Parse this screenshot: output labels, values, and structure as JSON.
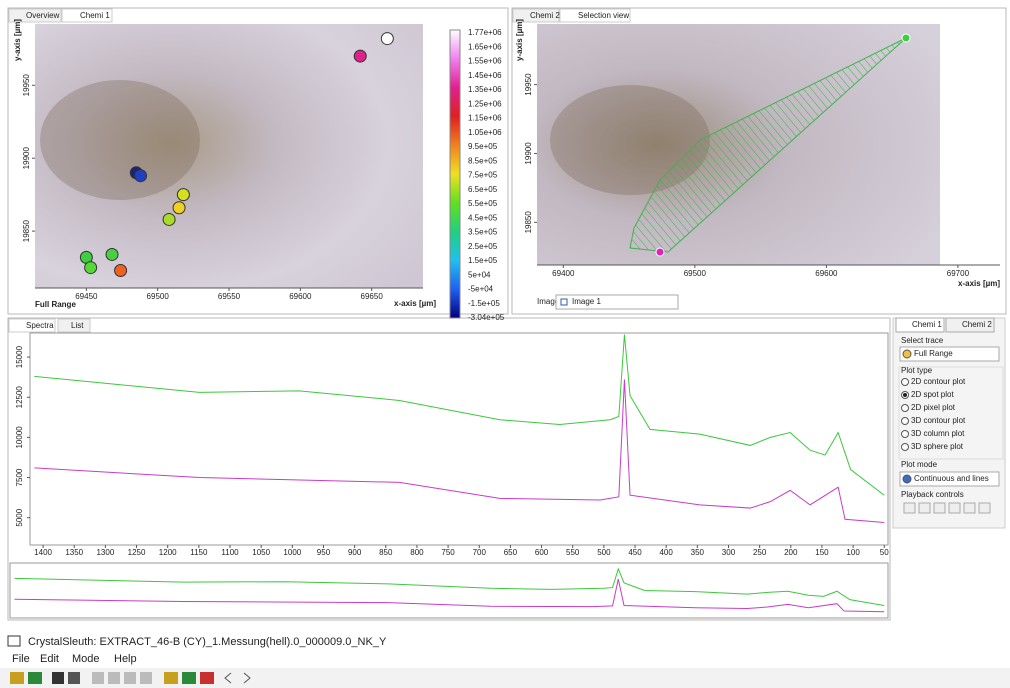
{
  "overview_panel": {
    "tabs": [
      "Overview",
      "Chemi 1"
    ],
    "y_axis_label": "y-axis [µm]",
    "x_axis_label": "x-axis [µm]",
    "range_label": "Full Range",
    "xlim": [
      69414,
      69686
    ],
    "ylim": [
      19811,
      19992
    ],
    "xticks": [
      69450,
      69500,
      69550,
      69600,
      69650
    ],
    "yticks": [
      19850,
      19900,
      19950
    ],
    "spots": [
      {
        "x": 69661,
        "y": 19982,
        "color": "#ffffff"
      },
      {
        "x": 69642,
        "y": 19970,
        "color": "#e0208c"
      },
      {
        "x": 69485,
        "y": 19890,
        "color": "#1a237e"
      },
      {
        "x": 69488,
        "y": 19888,
        "color": "#1e40c0"
      },
      {
        "x": 69518,
        "y": 19875,
        "color": "#d4e020"
      },
      {
        "x": 69515,
        "y": 19866,
        "color": "#f0d020"
      },
      {
        "x": 69508,
        "y": 19858,
        "color": "#a8dc28"
      },
      {
        "x": 69450,
        "y": 19832,
        "color": "#3cd040"
      },
      {
        "x": 69453,
        "y": 19825,
        "color": "#58d838"
      },
      {
        "x": 69468,
        "y": 19834,
        "color": "#48d040"
      },
      {
        "x": 69474,
        "y": 19823,
        "color": "#f06020"
      }
    ],
    "colorbar": {
      "labels": [
        "1.77e+06",
        "1.65e+06",
        "1.55e+06",
        "1.45e+06",
        "1.35e+06",
        "1.25e+06",
        "1.15e+06",
        "1.05e+06",
        "9.5e+05",
        "8.5e+05",
        "7.5e+05",
        "6.5e+05",
        "5.5e+05",
        "4.5e+05",
        "3.5e+05",
        "2.5e+05",
        "1.5e+05",
        "5e+04",
        "-5e+04",
        "-1.5e+05",
        "-3.04e+05"
      ],
      "colors": [
        "#ffffff",
        "#f080f0",
        "#e02090",
        "#e02020",
        "#f08020",
        "#f0e020",
        "#60e020",
        "#20d080",
        "#20c0f0",
        "#2060f0",
        "#000080"
      ]
    }
  },
  "selection_panel": {
    "tabs": [
      "Chemi 2",
      "Selection view"
    ],
    "y_axis_label": "y-axis [µm]",
    "x_axis_label": "x-axis [µm]",
    "xlim": [
      69380,
      69732
    ],
    "ylim": [
      19819,
      19994
    ],
    "xticks": [
      69400,
      69500,
      69600,
      69700
    ],
    "yticks": [
      19850,
      19900,
      19950
    ],
    "image_label": "Image:",
    "image_value": "Image 1"
  },
  "spectra_panel": {
    "tabs": [
      "Spectra",
      "List"
    ],
    "xlim": [
      1421,
      44
    ],
    "ylim": [
      3300,
      16500
    ],
    "overview_ylim": [
      3000,
      18000
    ],
    "xticks": [
      1400,
      1350,
      1300,
      1250,
      1200,
      1150,
      1100,
      1050,
      1000,
      950,
      900,
      850,
      800,
      750,
      700,
      650,
      600,
      550,
      500,
      450,
      400,
      350,
      300,
      250,
      200,
      150,
      100,
      50
    ],
    "yticks": [
      5000,
      7500,
      10000,
      12500,
      15000
    ],
    "series": [
      {
        "color": "#3cc83c",
        "x": [
          1414,
          1149,
          989,
          828,
          667,
          571,
          490,
          476,
          467,
          458,
          426,
          346,
          265,
          233,
          201,
          169,
          145,
          124,
          104,
          50
        ],
        "values": [
          13800,
          12800,
          12900,
          12300,
          11100,
          10800,
          11100,
          11300,
          16400,
          12600,
          10500,
          10200,
          9500,
          10000,
          10300,
          9200,
          8900,
          10300,
          8000,
          6400
        ]
      },
      {
        "color": "#c83cc8",
        "x": [
          1414,
          1149,
          828,
          667,
          506,
          476,
          467,
          458,
          346,
          265,
          233,
          201,
          169,
          124,
          113,
          50
        ],
        "values": [
          8100,
          7500,
          7200,
          6200,
          6100,
          6300,
          13600,
          6400,
          5800,
          5600,
          6000,
          6700,
          5800,
          6900,
          4900,
          4700
        ]
      }
    ]
  },
  "control_panel": {
    "tabs": [
      "Chemi 1",
      "Chemi 2"
    ],
    "select_trace_label": "Select trace",
    "select_trace_value": "Full Range",
    "plot_type_label": "Plot type",
    "plot_types": [
      "2D contour plot",
      "2D spot plot",
      "2D pixel plot",
      "3D contour plot",
      "3D column plot",
      "3D sphere plot"
    ],
    "selected_plot_type": 1,
    "plot_mode_label": "Plot mode",
    "plot_mode_value": "Continuous and lines",
    "playback_label": "Playback controls"
  },
  "window": {
    "title": "CrystalSleuth: EXTRACT_46-B (CY)_1.Messung(hell).0_000009.0_NK_Y",
    "menu": [
      "File",
      "Edit",
      "Mode",
      "Help"
    ]
  }
}
